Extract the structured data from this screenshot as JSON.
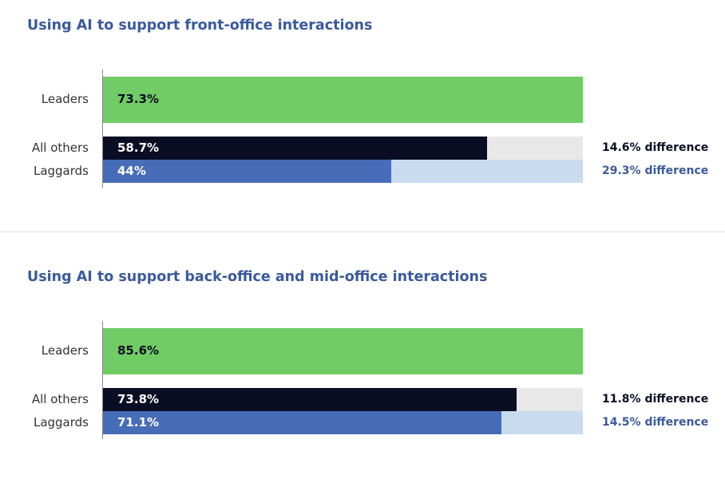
{
  "colors": {
    "leaders": "#71cc65",
    "others": "#0b0d24",
    "others_track": "#e8e8e8",
    "laggards": "#476cb8",
    "laggards_track": "#c9dbee",
    "title": "#3a5a9c",
    "others_diff": "#0b0d24",
    "laggards_diff": "#3a5a9c"
  },
  "chart_data": [
    {
      "type": "bar",
      "orientation": "horizontal",
      "title": "Using AI to support front-office interactions",
      "categories": [
        "Leaders",
        "All others",
        "Laggards"
      ],
      "values": [
        73.3,
        58.7,
        44
      ],
      "value_labels": [
        "73.3%",
        "58.7%",
        "44%"
      ],
      "differences": [
        "",
        "14.6% difference",
        "29.3% difference"
      ]
    },
    {
      "type": "bar",
      "orientation": "horizontal",
      "title": "Using AI to support back-office and mid-office interactions",
      "categories": [
        "Leaders",
        "All others",
        "Laggards"
      ],
      "values": [
        85.6,
        73.8,
        71.1
      ],
      "value_labels": [
        "85.6%",
        "73.8%",
        "71.1%"
      ],
      "differences": [
        "",
        "11.8% difference",
        "14.5% difference"
      ]
    }
  ]
}
